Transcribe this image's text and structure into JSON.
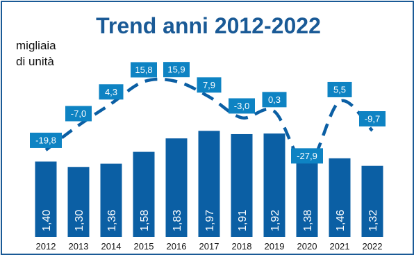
{
  "chart_data": {
    "type": "bar",
    "title": "Trend anni 2012-2022",
    "ylabel_line1": "migliaia",
    "ylabel_line2": "di unità",
    "categories": [
      "2012",
      "2013",
      "2014",
      "2015",
      "2016",
      "2017",
      "2018",
      "2019",
      "2020",
      "2021",
      "2022"
    ],
    "values": [
      1.4,
      1.3,
      1.36,
      1.58,
      1.83,
      1.97,
      1.91,
      1.92,
      1.38,
      1.46,
      1.32
    ],
    "value_labels": [
      "1,40",
      "1,30",
      "1,36",
      "1,58",
      "1,83",
      "1,97",
      "1,91",
      "1,92",
      "1,38",
      "1,46",
      "1,32"
    ],
    "ylim": [
      0,
      2.5
    ],
    "overlay_line": {
      "style": "dashed",
      "values": [
        -19.8,
        -7.0,
        4.3,
        15.8,
        15.9,
        7.9,
        -3.0,
        0.3,
        -27.9,
        5.5,
        -9.7
      ],
      "labels": [
        "-19,8",
        "-7,0",
        "4,3",
        "15,8",
        "15,9",
        "7,9",
        "-3,0",
        "0,3",
        "-27,9",
        "5,5",
        "-9,7"
      ],
      "ylim": [
        -35,
        25
      ]
    },
    "colors": {
      "bar": "#0b5fa4",
      "line": "#0b5fa4",
      "label_box": "#0e83c3",
      "title": "#1a5a96",
      "border": "#1a5a96"
    },
    "grid": false,
    "legend": "none"
  }
}
